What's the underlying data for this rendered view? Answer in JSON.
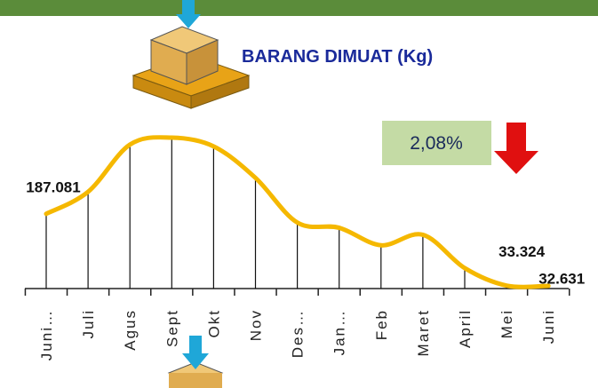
{
  "chart_data": {
    "type": "line",
    "title": "BARANG DIMUAT (Kg)",
    "annotation": "2,08%",
    "categories": [
      "Juni…",
      "Juli",
      "Agus",
      "Sept",
      "Okt",
      "Nov",
      "Des…",
      "Jan…",
      "Feb",
      "Maret",
      "April",
      "Mei",
      "Juni"
    ],
    "values": [
      187081,
      234000,
      335200,
      350200,
      331500,
      264000,
      168300,
      157100,
      119600,
      142100,
      70800,
      33324,
      32631
    ],
    "value_labels": [
      "187.081",
      null,
      null,
      null,
      null,
      null,
      null,
      null,
      null,
      null,
      null,
      "33.324",
      "32.631"
    ],
    "color": "#f5b800"
  }
}
